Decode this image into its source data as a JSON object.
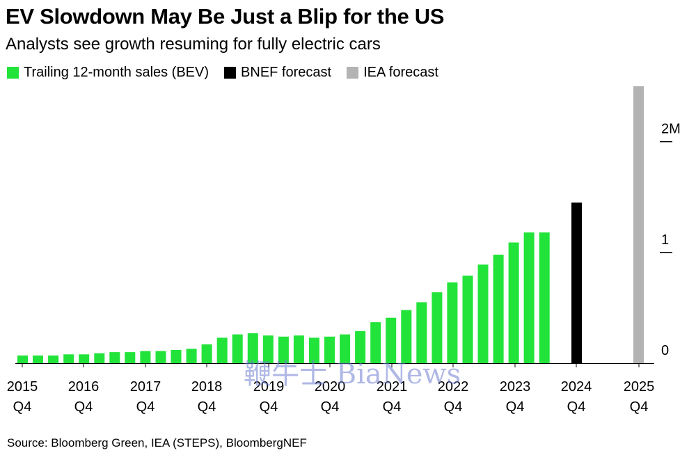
{
  "title": "EV Slowdown May Be Just a Blip for the US",
  "subtitle": "Analysts see growth resuming for fully electric cars",
  "legend": [
    {
      "label": "Trailing 12-month sales (BEV)",
      "color": "#22e33a"
    },
    {
      "label": "BNEF forecast",
      "color": "#000000"
    },
    {
      "label": "IEA forecast",
      "color": "#b3b3b3"
    }
  ],
  "source": "Source: Bloomberg Green, IEA (STEPS), BloombergNEF",
  "watermark": "鞭牛士 BiaNews",
  "chart_data": {
    "type": "bar",
    "ylim": [
      0,
      2.5
    ],
    "y_unit": "M",
    "y_ticks": [
      {
        "value": 0,
        "label": "0"
      },
      {
        "value": 1,
        "label": "1"
      },
      {
        "value": 2,
        "label": "2M"
      }
    ],
    "x_tick_labels": [
      {
        "year": "2015",
        "quarter": "Q4"
      },
      {
        "year": "2016",
        "quarter": "Q4"
      },
      {
        "year": "2017",
        "quarter": "Q4"
      },
      {
        "year": "2018",
        "quarter": "Q4"
      },
      {
        "year": "2019",
        "quarter": "Q4"
      },
      {
        "year": "2020",
        "quarter": "Q4"
      },
      {
        "year": "2021",
        "quarter": "Q4"
      },
      {
        "year": "2022",
        "quarter": "Q4"
      },
      {
        "year": "2023",
        "quarter": "Q4"
      },
      {
        "year": "2024",
        "quarter": "Q4"
      },
      {
        "year": "2025",
        "quarter": "Q4"
      }
    ],
    "series": [
      {
        "name": "Trailing 12-month sales (BEV)",
        "color": "#22e33a",
        "start": "2015 Q4",
        "values": [
          0.07,
          0.07,
          0.07,
          0.08,
          0.08,
          0.09,
          0.1,
          0.1,
          0.11,
          0.11,
          0.12,
          0.13,
          0.17,
          0.23,
          0.26,
          0.27,
          0.25,
          0.24,
          0.25,
          0.23,
          0.24,
          0.26,
          0.29,
          0.37,
          0.41,
          0.48,
          0.55,
          0.64,
          0.73,
          0.79,
          0.89,
          0.98,
          1.09,
          1.18,
          1.18
        ]
      },
      {
        "name": "BNEF forecast",
        "color": "#000000",
        "x": "2024 Q4",
        "value": 1.45
      },
      {
        "name": "IEA forecast",
        "color": "#b3b3b3",
        "x": "2025 Q4",
        "value": 2.5
      }
    ]
  }
}
